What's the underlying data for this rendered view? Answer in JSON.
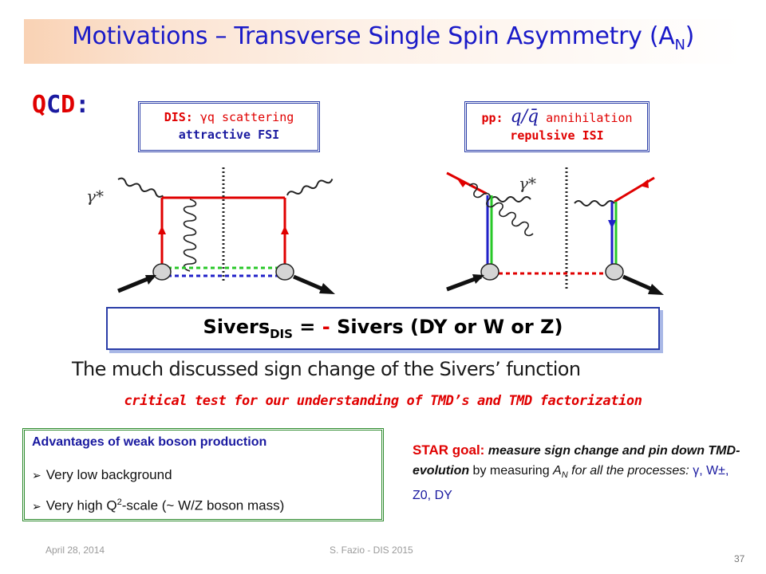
{
  "title": {
    "main": "Motivations – Transverse Single Spin Asymmetry (A",
    "sub": "N",
    "close": ")"
  },
  "qcd": {
    "letters": [
      "Q",
      "C",
      "D",
      ":"
    ],
    "colors": [
      "#e00000",
      "#1a1aa0",
      "#e00000",
      "#1a1aa0"
    ]
  },
  "dis_box": {
    "prefix": "DIS: ",
    "gamma": "γ",
    "rest": "q scattering",
    "line2": "attractive FSI"
  },
  "pp_box": {
    "prefix": "pp:",
    "qqbar": "q/q̄",
    "rest": " annihilation",
    "line2": "repulsive ISI"
  },
  "diagram": {
    "gamma_star_left": "γ*",
    "gamma_star_right": "γ*"
  },
  "sivers": {
    "name": "Sivers",
    "sub": "DIS",
    "eq": " = ",
    "minus": "-",
    "rest": " Sivers (DY or W or Z)"
  },
  "sign_change_text": "The much discussed sign change of the Sivers’ function",
  "critical_text": "critical test for our understanding of TMD’s and TMD factorization",
  "advantages": {
    "title": "Advantages of weak boson production",
    "item1": "Very low background",
    "item2_a": "Very high Q",
    "item2_sup": "2",
    "item2_b": "-scale (~ W/Z boson mass)"
  },
  "star": {
    "goal": "STAR goal:",
    "t1": " measure sign change and pin down TMD-evolution",
    "t2": " by measuring ",
    "an_a": "A",
    "an_sub": "N",
    "t3": " for all the processes: ",
    "processes": "γ, W±, Z0, DY"
  },
  "footer": {
    "date": "April 28, 2014",
    "author": "S. Fazio - DIS 2015",
    "slide_number": "37"
  },
  "colors": {
    "title_blue": "#1a1ac8",
    "accent_red": "#e00000",
    "navy": "#1a1aa0",
    "green_border": "#2e8b2e",
    "box_border": "#2b3ea8"
  }
}
